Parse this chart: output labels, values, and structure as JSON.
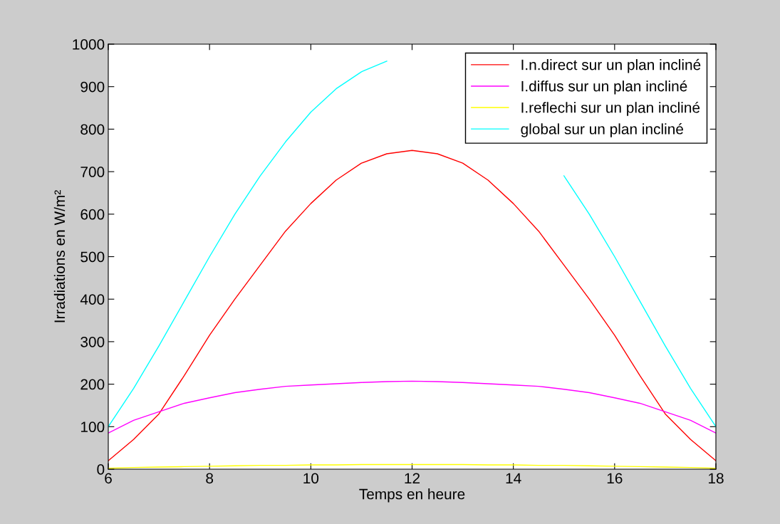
{
  "chart_data": {
    "type": "line",
    "xlabel": "Temps en heure",
    "ylabel": "Irradiations en W/m²",
    "x": [
      6,
      6.5,
      7,
      7.5,
      8,
      8.5,
      9,
      9.5,
      10,
      10.5,
      11,
      11.5,
      12,
      12.5,
      13,
      13.5,
      14,
      14.5,
      15,
      15.5,
      16,
      16.5,
      17,
      17.5,
      18
    ],
    "xlim": [
      6,
      18
    ],
    "xticks": [
      6,
      8,
      10,
      12,
      14,
      16,
      18
    ],
    "ylim": [
      0,
      1000
    ],
    "yticks": [
      0,
      100,
      200,
      300,
      400,
      500,
      600,
      700,
      800,
      900,
      1000
    ],
    "grid": false,
    "legend": "top right",
    "line_style": "solid",
    "marker": "none",
    "series": [
      {
        "name": "I.n.direct sur un plan incliné",
        "color": "#ff0000",
        "values": [
          20,
          70,
          130,
          220,
          315,
          400,
          480,
          560,
          625,
          680,
          720,
          742,
          750,
          742,
          720,
          680,
          625,
          560,
          480,
          400,
          315,
          220,
          130,
          70,
          20
        ]
      },
      {
        "name": "I.diffus sur un plan incliné",
        "color": "#ff00ff",
        "values": [
          85,
          115,
          135,
          155,
          168,
          180,
          188,
          195,
          198,
          201,
          204,
          206,
          207,
          206,
          204,
          201,
          198,
          195,
          188,
          180,
          168,
          155,
          135,
          115,
          85
        ]
      },
      {
        "name": "I.reflechi sur un plan incliné",
        "color": "#ffff00",
        "values": [
          2,
          4,
          5,
          6,
          7,
          8,
          9,
          9,
          10,
          10,
          11,
          11,
          11,
          11,
          11,
          10,
          10,
          9,
          9,
          8,
          7,
          6,
          5,
          4,
          2
        ]
      },
      {
        "name": "global sur un plan incliné",
        "color": "#00ffff",
        "values": [
          100,
          190,
          290,
          395,
          500,
          600,
          690,
          770,
          840,
          895,
          935,
          960,
          null,
          null,
          null,
          null,
          null,
          null,
          690,
          600,
          500,
          395,
          290,
          190,
          100
        ]
      }
    ]
  }
}
